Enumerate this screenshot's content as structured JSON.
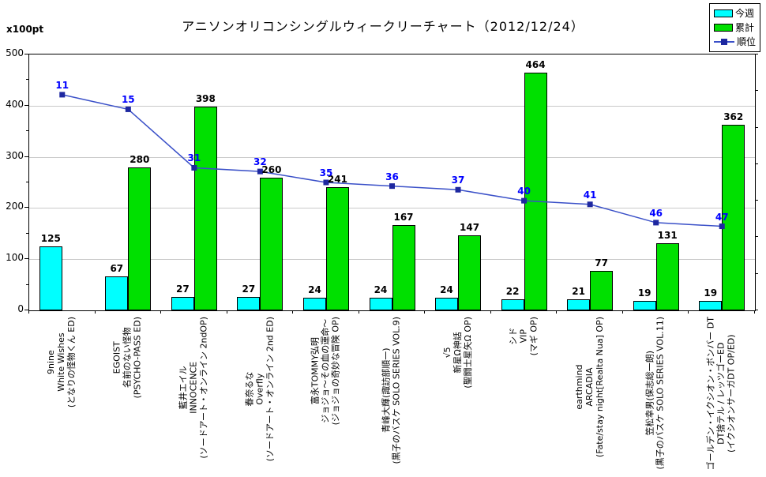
{
  "chart_data": {
    "type": "bar",
    "title": "アニソンオリコンシングルウィークリーチャート（2012/12/24）",
    "unit_label": "x100pt",
    "categories": [
      [
        "9nine",
        "White Wishes",
        "(となりの怪物くん ED)"
      ],
      [
        "EGOIST",
        "名前のない怪物",
        "(PSYCHO-PASS ED)"
      ],
      [
        "藍井エイル",
        "INNOCENCE",
        "(ソードアート・オンライン 2ndOP)"
      ],
      [
        "春奈るな",
        "Overfly",
        "(ソードアート・オンライン 2nd ED)"
      ],
      [
        "富永TOMMY弘明",
        "ジョジョ～その血の運命～",
        "(ジョジョの奇妙な冒険 OP)"
      ],
      [
        "青峰大輝(諏訪部順一)",
        "(黒子のバスケ SOLO SERIES VOL.9)"
      ],
      [
        "√5",
        "新星Ω神話",
        "(聖闘士星矢Ω OP)"
      ],
      [
        "シド",
        "VIP",
        "(マギ OP)"
      ],
      [
        "earthmind",
        "ARCADIA",
        "(Fate/stay night[Realta Nua] OP)"
      ],
      [
        "笠松幸男(保志総一朗)",
        "(黒子のバスケ SOLO SERIES VOL.11)"
      ],
      [
        "ゴールデン・イクシオン・ボンバー DT",
        "DT捨テル / レッツゴーED",
        "(イクシオンサーガDT OP/ED)"
      ]
    ],
    "series": [
      {
        "name": "今週",
        "type": "bar",
        "color": "#00FFFF",
        "values": [
          125,
          67,
          27,
          27,
          24,
          24,
          24,
          22,
          21,
          19,
          19
        ]
      },
      {
        "name": "累計",
        "type": "bar",
        "color": "#00E000",
        "values": [
          null,
          280,
          398,
          260,
          241,
          167,
          147,
          464,
          77,
          131,
          362
        ]
      },
      {
        "name": "順位",
        "type": "line",
        "color": "#3A50C8",
        "marker_color": "#1E28A0",
        "label_color": "#0000FF",
        "axis": "secondary",
        "values": [
          11,
          15,
          31,
          32,
          35,
          36,
          37,
          40,
          41,
          46,
          47
        ]
      }
    ],
    "y_axis": {
      "label": "x100pt",
      "min": 0,
      "max": 500,
      "major_tick": 100,
      "minor_tick": 50,
      "tick_labels": [
        0,
        100,
        200,
        300,
        400,
        500
      ]
    },
    "secondary_axis": {
      "min": 0,
      "max": 70,
      "inverted": true,
      "labels_hidden": true
    },
    "grid": true,
    "legend_position": "top-right",
    "colors": {
      "grid": "#C9C9C9",
      "plot_border": "#000000",
      "value_label": "#000000"
    }
  }
}
